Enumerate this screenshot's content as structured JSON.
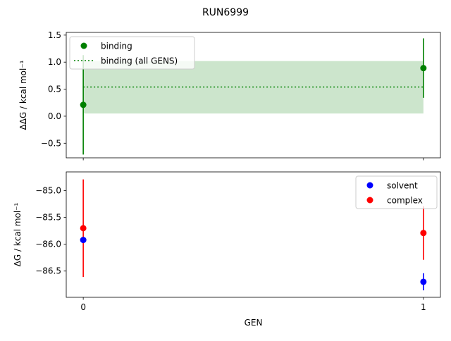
{
  "chart_data": [
    {
      "type": "scatter",
      "title": "RUN6999",
      "ylabel": "ΔΔG / kcal mol⁻¹",
      "xlabel": "",
      "xlim": [
        -0.05,
        1.05
      ],
      "ylim": [
        -0.77,
        1.55
      ],
      "yticks": [
        -0.5,
        0.0,
        0.5,
        1.0,
        1.5
      ],
      "ytick_labels": [
        "−0.5",
        "0.0",
        "0.5",
        "1.0",
        "1.5"
      ],
      "xticks": [
        0,
        1
      ],
      "grid": false,
      "legend": "top-left",
      "series": [
        {
          "name": "binding",
          "color": "#008000",
          "x": [
            0,
            1
          ],
          "y": [
            0.21,
            0.89
          ],
          "yerr": [
            0.92,
            0.55
          ]
        },
        {
          "name": "binding (all GENS)",
          "color": "#008000",
          "style": "dotted-line",
          "y": 0.54,
          "band": [
            0.05,
            1.02
          ],
          "band_color": "#cce5cc"
        }
      ]
    },
    {
      "type": "scatter",
      "ylabel": "ΔG / kcal mol⁻¹",
      "xlabel": "GEN",
      "xlim": [
        -0.05,
        1.05
      ],
      "ylim": [
        -86.99,
        -84.65
      ],
      "yticks": [
        -85.0,
        -85.5,
        -86.0,
        -86.5
      ],
      "ytick_labels": [
        "−85.0",
        "−85.5",
        "−86.0",
        "−86.5"
      ],
      "xticks": [
        0,
        1
      ],
      "xtick_labels": [
        "0",
        "1"
      ],
      "grid": false,
      "legend": "top-right",
      "series": [
        {
          "name": "solvent",
          "color": "#0000ff",
          "x": [
            0,
            1
          ],
          "y": [
            -85.92,
            -86.7
          ],
          "yerr": [
            0.05,
            0.16
          ]
        },
        {
          "name": "complex",
          "color": "#ff0000",
          "x": [
            0,
            1
          ],
          "y": [
            -85.7,
            -85.79
          ],
          "yerr": [
            0.91,
            0.5
          ]
        }
      ]
    }
  ]
}
